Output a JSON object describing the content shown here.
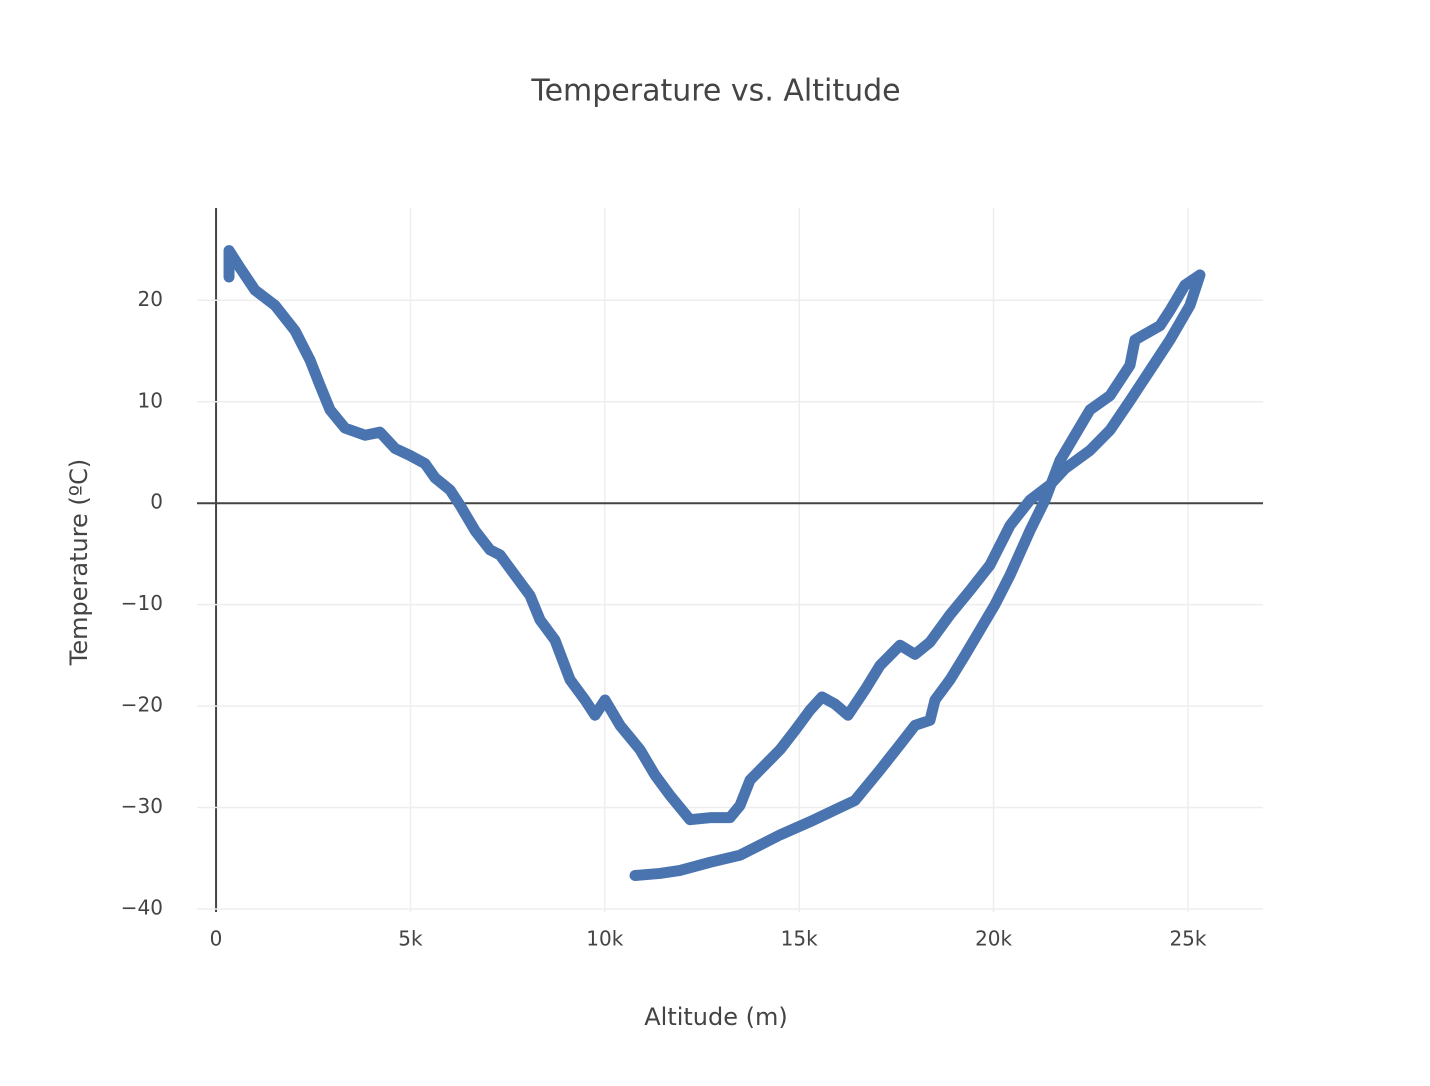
{
  "chart_data": {
    "type": "line",
    "title": "Temperature vs. Altitude",
    "x_label": "Altitude (m)",
    "y_label": "Temperature (ºC)",
    "xlim": [
      -490,
      26930
    ],
    "ylim": [
      -40.3,
      29.1
    ],
    "xticks": [
      0,
      {
        "value": 5000,
        "label": "5k"
      },
      {
        "value": 10000,
        "label": "10k"
      },
      {
        "value": 15000,
        "label": "15k"
      },
      {
        "value": 20000,
        "label": "20k"
      },
      {
        "value": 25000,
        "label": "25k"
      }
    ],
    "yticks": [
      {
        "value": -40,
        "label": "−40"
      },
      {
        "value": -30,
        "label": "−30"
      },
      {
        "value": -20,
        "label": "−20"
      },
      {
        "value": -10,
        "label": "−10"
      },
      0,
      10,
      20
    ],
    "grid": true,
    "series": [
      {
        "color": "#4a74b0",
        "x": [
          334,
          334,
          617,
          1003,
          1517,
          2032,
          2418,
          2675,
          2932,
          3318,
          3832,
          4218,
          4604,
          4990,
          5376,
          5633,
          6019,
          6276,
          6662,
          7047,
          7305,
          7690,
          8076,
          8333,
          8719,
          9105,
          9491,
          9748,
          10005,
          10391,
          10905,
          11291,
          11677,
          12191,
          12706,
          13220,
          13477,
          13735,
          14120,
          14506,
          14892,
          15278,
          15586,
          15921,
          16255,
          16692,
          17078,
          17593,
          17978,
          18364,
          18879,
          19393,
          19907,
          20422,
          20936,
          21451,
          21836,
          22479,
          22994,
          23508,
          24023,
          24537,
          25051,
          25309,
          24923,
          24537,
          24280,
          23637,
          23508,
          22994,
          22479,
          22093,
          21708,
          21322,
          20936,
          20422,
          20036,
          19650,
          19264,
          18879,
          18493,
          18364,
          17978,
          17593,
          17078,
          16435,
          16049,
          15278,
          14506,
          13992,
          13477,
          12706,
          11934,
          11420,
          10777
        ],
        "values": [
          22.3,
          24.9,
          23.2,
          21,
          19.5,
          17,
          14.1,
          11.6,
          9.2,
          7.4,
          6.7,
          7.0,
          5.4,
          4.7,
          3.9,
          2.5,
          1.3,
          -0.2,
          -2.7,
          -4.6,
          -5.1,
          -7.1,
          -9.1,
          -11.5,
          -13.5,
          -17.4,
          -19.4,
          -20.9,
          -19.4,
          -21.9,
          -24.3,
          -26.8,
          -28.8,
          -31.2,
          -31.0,
          -31.0,
          -29.8,
          -27.3,
          -25.8,
          -24.3,
          -22.4,
          -20.4,
          -19.1,
          -19.8,
          -20.9,
          -18.4,
          -16.0,
          -14.0,
          -14.9,
          -13.7,
          -11.0,
          -8.6,
          -6.1,
          -2.2,
          0.3,
          1.8,
          3.4,
          5.2,
          7.2,
          10.1,
          13.1,
          16.1,
          19.5,
          22.5,
          21.5,
          19.0,
          17.5,
          16.1,
          13.6,
          10.6,
          9.2,
          6.7,
          4.2,
          0.3,
          -2.7,
          -7.1,
          -10.0,
          -12.5,
          -15.0,
          -17.4,
          -19.4,
          -21.4,
          -21.9,
          -23.8,
          -26.3,
          -29.3,
          -30.0,
          -31.4,
          -32.7,
          -33.7,
          -34.7,
          -35.4,
          -36.2,
          -36.5,
          -36.7
        ]
      }
    ]
  }
}
